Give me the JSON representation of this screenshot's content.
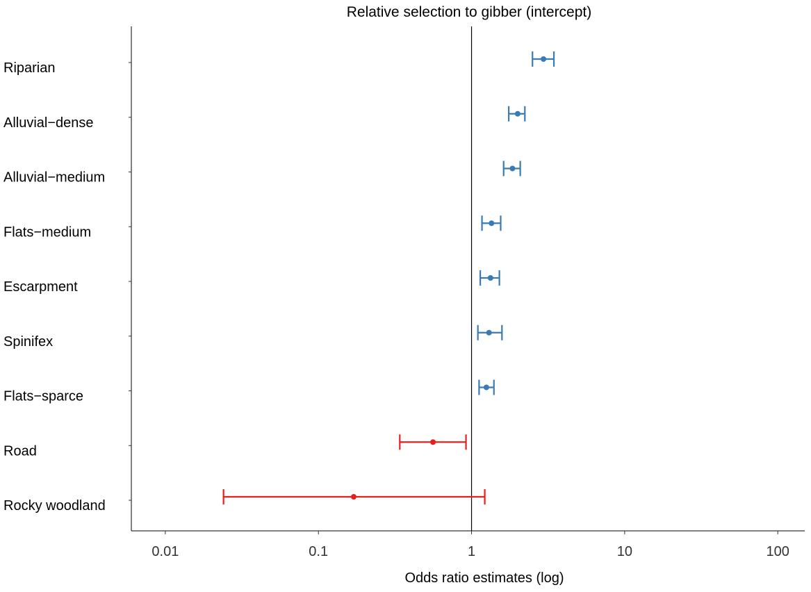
{
  "chart_data": {
    "type": "scatter",
    "subtype": "forest-plot-error-bars",
    "title": "Relative selection to gibber (intercept)",
    "xlabel": "Odds ratio estimates (log)",
    "ylabel": "",
    "xscale": "log",
    "xlim": [
      0.006,
      150
    ],
    "x_ticks": [
      0.01,
      0.1,
      1,
      10,
      100
    ],
    "x_tick_labels": [
      "0.01",
      "0.1",
      "1",
      "10",
      "100"
    ],
    "reference_line": 1,
    "grid": false,
    "legend": "none",
    "colors": {
      "positive": "#3a7ab5",
      "negative": "#e8201d",
      "axis": "#000000",
      "tick": "#333333"
    },
    "categories": [
      "Riparian",
      "Alluvial−dense",
      "Alluvial−medium",
      "Flats−medium",
      "Escarpment",
      "Spinifex",
      "Flats−sparce",
      "Road",
      "Rocky woodland"
    ],
    "estimates": [
      2.95,
      2.0,
      1.85,
      1.35,
      1.33,
      1.3,
      1.25,
      0.56,
      0.17
    ],
    "lower": [
      2.5,
      1.75,
      1.62,
      1.17,
      1.14,
      1.1,
      1.12,
      0.34,
      0.024
    ],
    "upper": [
      3.45,
      2.23,
      2.08,
      1.55,
      1.52,
      1.58,
      1.4,
      0.92,
      1.22
    ],
    "series_color_keys": [
      "positive",
      "positive",
      "positive",
      "positive",
      "positive",
      "positive",
      "positive",
      "negative",
      "negative"
    ]
  }
}
